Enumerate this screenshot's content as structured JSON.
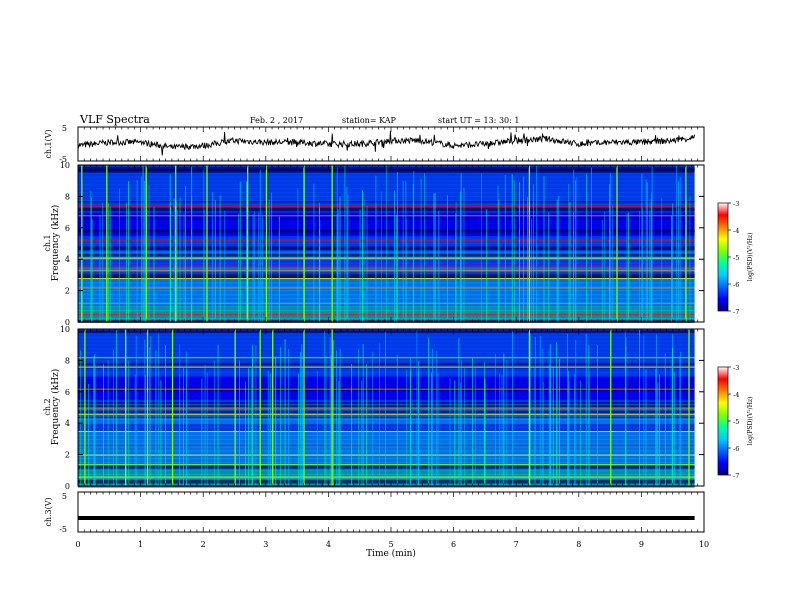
{
  "header": {
    "title": "VLF Spectra",
    "date": "Feb. 2  , 2017",
    "station": "station= KAP",
    "start": "start  UT =   13: 30: 1"
  },
  "colorbar": {
    "label": "log(PSD)(V²/Hz)",
    "ticks": [
      "-3",
      "-4",
      "-5",
      "-6",
      "-7"
    ]
  },
  "colors": {
    "background": "#ffffff",
    "trace": "#000000",
    "colormap": [
      "#00007a",
      "#0000ff",
      "#0066ff",
      "#00ccff",
      "#00ff99",
      "#7fff00",
      "#ffff00",
      "#ff8000",
      "#ff0000",
      "#ffffff"
    ]
  },
  "chart_data": [
    {
      "type": "line",
      "ylabel": "ch.1(V)",
      "ytick_labels": [
        "5",
        "-5"
      ],
      "ylim": [
        -5,
        5
      ],
      "xlim": [
        0,
        9.85
      ],
      "description_values": {
        "x": [
          0,
          0.5,
          1.0,
          1.5,
          2.0,
          2.5,
          3.0,
          3.5,
          4.0,
          4.5,
          5.0,
          5.5,
          6.0,
          6.5,
          7.0,
          7.5,
          8.0,
          8.5,
          9.0,
          9.5,
          9.85
        ],
        "y": [
          -0.5,
          0.5,
          0.5,
          -1.0,
          -0.5,
          1.0,
          0.5,
          0.5,
          0.0,
          0.0,
          1.0,
          1.0,
          -0.5,
          0.0,
          1.0,
          1.5,
          0.0,
          0.5,
          0.5,
          1.0,
          2.0
        ]
      }
    },
    {
      "type": "heatmap",
      "ylabel": "ch.1\nFrequency (kHz)",
      "ytick_labels": [
        "0",
        "2",
        "4",
        "6",
        "8",
        "10"
      ],
      "ylim": [
        0,
        10
      ],
      "xlim": [
        0,
        9.85
      ],
      "bands_khz": [
        0.5,
        1.2,
        2.2,
        2.8,
        3.3,
        3.6,
        4.1,
        5.2,
        6.8,
        7.4
      ],
      "bright_times_min": [
        0.05,
        0.45,
        1.08,
        1.55,
        2.05,
        2.7,
        3.0,
        3.6,
        4.05,
        7.2,
        8.6,
        9.7
      ]
    },
    {
      "type": "heatmap",
      "ylabel": "ch.2\nFrequency (kHz)",
      "ytick_labels": [
        "0",
        "2",
        "4",
        "6",
        "8",
        "10"
      ],
      "ylim": [
        0,
        10
      ],
      "xlim": [
        0,
        9.85
      ],
      "bands_khz": [
        0.6,
        1.4,
        2.0,
        2.6,
        3.5,
        4.6,
        5.0,
        6.2,
        7.6,
        8.2
      ],
      "bright_times_min": [
        0.1,
        0.75,
        1.1,
        1.5,
        2.5,
        2.9,
        3.1,
        3.6,
        4.05,
        7.2,
        8.5,
        9.75
      ]
    },
    {
      "type": "line",
      "ylabel": "ch.3(V)",
      "ytick_labels": [
        "5",
        "-5"
      ],
      "ylim": [
        -5,
        5
      ],
      "x": [
        0,
        9.85
      ],
      "y": [
        -1.5,
        -1.5
      ]
    }
  ],
  "xaxis": {
    "label": "Time  (min)",
    "ticks": [
      "0",
      "1",
      "2",
      "3",
      "4",
      "5",
      "6",
      "7",
      "8",
      "9",
      "10"
    ],
    "range": [
      0,
      10
    ]
  }
}
